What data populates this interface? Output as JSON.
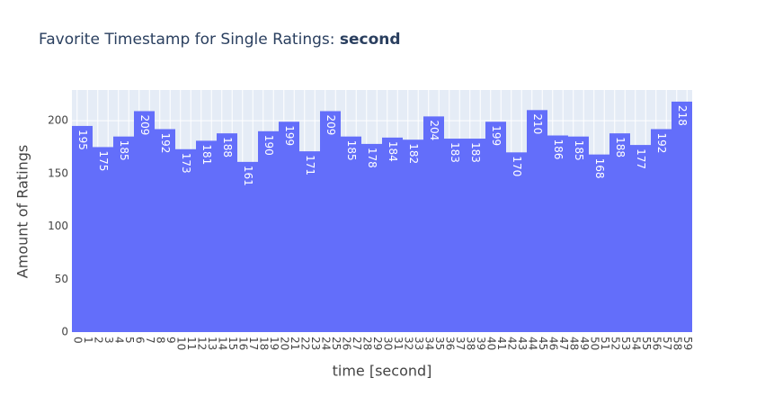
{
  "chart_data": {
    "type": "histogram",
    "title": "Favorite Timestamp for Single Ratings: ",
    "title_emphasis": "second",
    "x_label": "time [second]",
    "y_label": "Amount of Ratings",
    "bins": [
      -0.5,
      1.5,
      3.5,
      5.5,
      7.5,
      9.5,
      11.5,
      13.5,
      15.5,
      17.5,
      19.5,
      21.5,
      23.5,
      25.5,
      27.5,
      29.5,
      31.5,
      33.5,
      35.5,
      37.5,
      39.5,
      41.5,
      43.5,
      45.5,
      47.5,
      49.5,
      51.5,
      53.5,
      55.5,
      57.5,
      59.5
    ],
    "values": [
      195,
      175,
      185,
      209,
      192,
      173,
      181,
      188,
      161,
      190,
      199,
      171,
      209,
      185,
      178,
      184,
      182,
      204,
      183,
      183,
      199,
      170,
      210,
      186,
      185,
      168,
      188,
      177,
      192,
      218
    ],
    "color": "#636efa",
    "xlim": [
      -0.5,
      59.5
    ],
    "xticks": [
      0,
      1,
      2,
      3,
      4,
      5,
      6,
      7,
      8,
      9,
      10,
      11,
      12,
      13,
      14,
      15,
      16,
      17,
      18,
      19,
      20,
      21,
      22,
      23,
      24,
      25,
      26,
      27,
      28,
      29,
      30,
      31,
      32,
      33,
      34,
      35,
      36,
      37,
      38,
      39,
      40,
      41,
      42,
      43,
      44,
      45,
      46,
      47,
      48,
      49,
      50,
      51,
      52,
      53,
      54,
      55,
      56,
      57,
      58,
      59
    ],
    "ylim": [
      0,
      229
    ],
    "yticks": [
      0,
      50,
      100,
      150,
      200
    ],
    "grid": true
  }
}
